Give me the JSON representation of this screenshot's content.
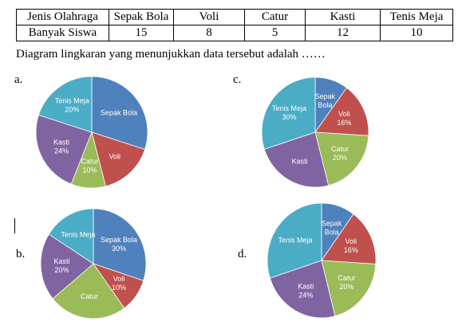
{
  "table": {
    "headers": [
      "Jenis Olahraga",
      "Sepak Bola",
      "Voli",
      "Catur",
      "Kasti",
      "Tenis Meja"
    ],
    "row": [
      "Banyak Siswa",
      "15",
      "8",
      "5",
      "12",
      "10"
    ]
  },
  "question": "Diagram lingkaran yang menunjukkan data tersebut adalah ……",
  "options": [
    {
      "label": "a.",
      "slices": [
        {
          "name": "Sepak Bola",
          "value": 30,
          "color": "#4f81bd",
          "lines": [
            "Sepak Bola"
          ]
        },
        {
          "name": "Voli",
          "value": 16,
          "color": "#c0504d",
          "lines": [
            "Voli"
          ]
        },
        {
          "name": "Catur",
          "value": 10,
          "color": "#9bbb59",
          "lines": [
            "Catur",
            "10%"
          ]
        },
        {
          "name": "Kasti",
          "value": 24,
          "color": "#8064a2",
          "lines": [
            "Kasti",
            "24%"
          ]
        },
        {
          "name": "Tenis Meja",
          "value": 20,
          "color": "#4bacc6",
          "lines": [
            "Tenis Meja",
            "20%"
          ]
        }
      ]
    },
    {
      "label": "c.",
      "slices": [
        {
          "name": "Sepak Bola",
          "value": 10,
          "color": "#4f81bd",
          "lines": [
            "Sepak",
            "Bola"
          ]
        },
        {
          "name": "Voli",
          "value": 16,
          "color": "#c0504d",
          "lines": [
            "Voli",
            "16%"
          ]
        },
        {
          "name": "Catur",
          "value": 20,
          "color": "#9bbb59",
          "lines": [
            "Catur",
            "20%"
          ]
        },
        {
          "name": "Kasti",
          "value": 24,
          "color": "#8064a2",
          "lines": [
            "Kasti"
          ]
        },
        {
          "name": "Tenis Meja",
          "value": 30,
          "color": "#4bacc6",
          "lines": [
            "Tenis Meja",
            "30%"
          ]
        }
      ]
    },
    {
      "label": "b.",
      "slices": [
        {
          "name": "Sepak Bola",
          "value": 30,
          "color": "#4f81bd",
          "lines": [
            "Sepak Bola",
            "30%"
          ]
        },
        {
          "name": "Voli",
          "value": 10,
          "color": "#c0504d",
          "lines": [
            "Voli",
            "10%"
          ]
        },
        {
          "name": "Catur",
          "value": 24,
          "color": "#9bbb59",
          "lines": [
            "Catur"
          ]
        },
        {
          "name": "Kasti",
          "value": 20,
          "color": "#8064a2",
          "lines": [
            "Kasti",
            "20%"
          ]
        },
        {
          "name": "Tenis Meja",
          "value": 16,
          "color": "#4bacc6",
          "lines": [
            "Tenis Meja"
          ]
        }
      ]
    },
    {
      "label": "d.",
      "slices": [
        {
          "name": "Sepak Bola",
          "value": 10,
          "color": "#4f81bd",
          "lines": [
            "Sepak",
            "Bola"
          ]
        },
        {
          "name": "Voli",
          "value": 16,
          "color": "#c0504d",
          "lines": [
            "Voli",
            "16%"
          ]
        },
        {
          "name": "Catur",
          "value": 20,
          "color": "#9bbb59",
          "lines": [
            "Catur",
            "20%"
          ]
        },
        {
          "name": "Kasti",
          "value": 24,
          "color": "#8064a2",
          "lines": [
            "Kasti",
            "24%"
          ]
        },
        {
          "name": "Tenis Meja",
          "value": 30,
          "color": "#4bacc6",
          "lines": [
            "Tenis Meja"
          ]
        }
      ]
    }
  ],
  "chart_data": [
    {
      "type": "pie",
      "categories": [
        "Sepak Bola",
        "Voli",
        "Catur",
        "Kasti",
        "Tenis Meja"
      ],
      "values": [
        30,
        16,
        10,
        24,
        20
      ]
    },
    {
      "type": "pie",
      "categories": [
        "Sepak Bola",
        "Voli",
        "Catur",
        "Kasti",
        "Tenis Meja"
      ],
      "values": [
        10,
        16,
        20,
        24,
        30
      ]
    },
    {
      "type": "pie",
      "categories": [
        "Sepak Bola",
        "Voli",
        "Catur",
        "Kasti",
        "Tenis Meja"
      ],
      "values": [
        30,
        10,
        24,
        20,
        16
      ]
    },
    {
      "type": "pie",
      "categories": [
        "Sepak Bola",
        "Voli",
        "Catur",
        "Kasti",
        "Tenis Meja"
      ],
      "values": [
        10,
        16,
        20,
        24,
        30
      ]
    }
  ]
}
